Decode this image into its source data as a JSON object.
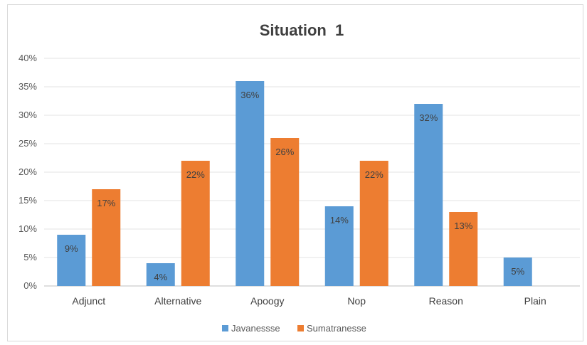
{
  "chart_data": {
    "type": "bar",
    "title": "Situation  1",
    "categories": [
      "Adjunct",
      "Alternative",
      "Apoogy",
      "Nop",
      "Reason",
      "Plain"
    ],
    "series": [
      {
        "name": "Javanessse",
        "values": [
          9,
          4,
          36,
          14,
          32,
          5
        ],
        "labels": [
          "9%",
          "4%",
          "36%",
          "14%",
          "32%",
          "5%"
        ],
        "color": "#5b9bd5"
      },
      {
        "name": "Sumatranesse",
        "values": [
          17,
          22,
          26,
          22,
          13,
          null
        ],
        "labels": [
          "17%",
          "22%",
          "26%",
          "22%",
          "13%",
          ""
        ],
        "color": "#ed7d31"
      }
    ],
    "ylim": [
      0,
      40
    ],
    "yticks": [
      "0%",
      "5%",
      "10%",
      "15%",
      "20%",
      "25%",
      "30%",
      "35%",
      "40%"
    ],
    "xlabel": "",
    "ylabel": "",
    "grid": true,
    "legend_position": "bottom"
  }
}
